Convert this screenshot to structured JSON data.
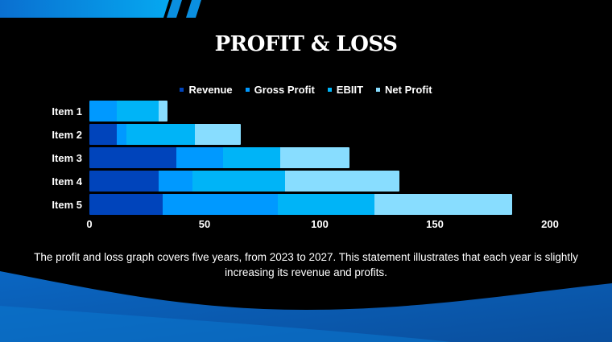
{
  "slide": {
    "title": "PROFIT & LOSS",
    "description": "The profit and loss graph covers five years, from 2023 to 2027. This statement illustrates that each year is slightly increasing its revenue and profits."
  },
  "colors": {
    "background": "#000000",
    "revenue": "#0044bb",
    "gross_profit": "#0099ff",
    "ebiit": "#00b4f7",
    "net_profit": "#88ddff",
    "accent_band": "#0a8fe0",
    "wave": "#0a56a8"
  },
  "legend": [
    {
      "label": "Revenue",
      "color": "#0044bb"
    },
    {
      "label": "Gross Profit",
      "color": "#0099ff"
    },
    {
      "label": "EBIIT",
      "color": "#00b4f7"
    },
    {
      "label": "Net Profit",
      "color": "#88ddff"
    }
  ],
  "axis": {
    "ticks": [
      "0",
      "50",
      "100",
      "150",
      "200"
    ]
  },
  "chart_data": {
    "type": "bar",
    "orientation": "horizontal",
    "stacked": true,
    "title": "PROFIT & LOSS",
    "categories": [
      "Item 1",
      "Item 2",
      "Item 3",
      "Item 4",
      "Item 5"
    ],
    "series": [
      {
        "name": "Revenue",
        "values": [
          0,
          12,
          38,
          30,
          32
        ]
      },
      {
        "name": "Gross Profit",
        "values": [
          12,
          4,
          20,
          15,
          50
        ]
      },
      {
        "name": "EBIIT",
        "values": [
          18,
          30,
          25,
          40,
          42
        ]
      },
      {
        "name": "Net Profit",
        "values": [
          4,
          20,
          30,
          50,
          60
        ]
      }
    ],
    "xlabel": "",
    "ylabel": "",
    "xlim": [
      0,
      200
    ],
    "xticks": [
      0,
      50,
      100,
      150,
      200
    ],
    "grid": false,
    "legend_position": "top"
  }
}
